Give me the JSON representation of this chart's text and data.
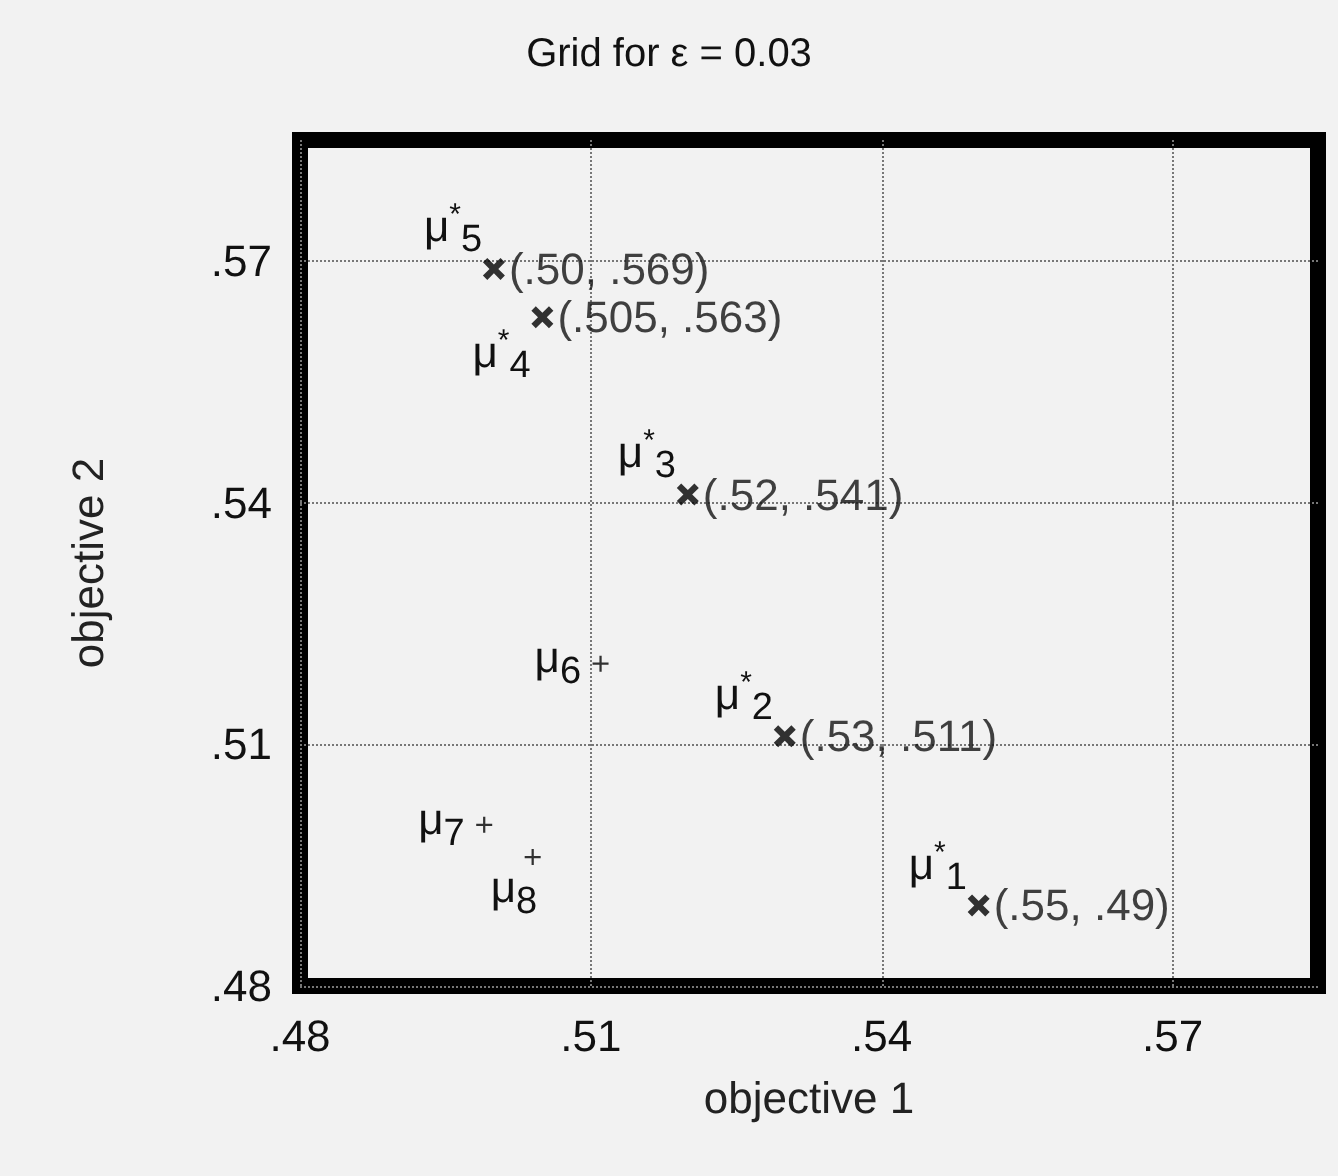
{
  "chart_data": {
    "type": "scatter",
    "title": "Grid for ε = 0.03",
    "xlabel": "objective 1",
    "ylabel": "objective 2",
    "series": [
      {
        "color": "#000000",
        "marker": "cross",
        "x": [
          0.55,
          0.53,
          0.52,
          0.505,
          0.5
        ],
        "values": [
          0.49,
          0.511,
          0.541,
          0.563,
          0.569
        ],
        "value_labels": [
          "(.55, .49)",
          "(.53, .511)",
          "(.52, .541)",
          "(.505, .563)",
          "(.50, .569)"
        ]
      },
      {
        "color": "#000000",
        "marker": "plus",
        "x": [
          0.511,
          0.499,
          0.504
        ],
        "values": [
          0.52,
          0.5,
          0.496
        ]
      }
    ],
    "annotations": [
      {
        "text": "μ$^{*}$$_{1}$",
        "x": 0.55,
        "y": 0.49
      },
      {
        "text": "μ$^{*}$$_{2}$",
        "x": 0.53,
        "y": 0.511
      },
      {
        "text": "μ$^{*}$$_{3}$",
        "x": 0.52,
        "y": 0.541
      },
      {
        "text": "μ$^{*}$$_{4}$",
        "x": 0.505,
        "y": 0.563
      },
      {
        "text": "μ$^{*}$$_{5}$",
        "x": 0.5,
        "y": 0.569
      },
      {
        "text": "μ$_{6}$",
        "x": 0.511,
        "y": 0.52
      },
      {
        "text": "μ$_{7}$",
        "x": 0.499,
        "y": 0.5
      },
      {
        "text": "μ$_{8}$",
        "x": 0.504,
        "y": 0.496
      }
    ],
    "xlim": [
      0.48,
      0.585
    ],
    "ylim": [
      0.48,
      0.585
    ],
    "xticks": [
      {
        "value": 0.48,
        "label": ".48"
      },
      {
        "value": 0.51,
        "label": ".51"
      },
      {
        "value": 0.54,
        "label": ".54"
      },
      {
        "value": 0.57,
        "label": ".57"
      }
    ],
    "yticks": [
      {
        "value": 0.48,
        "label": ".48"
      },
      {
        "value": 0.51,
        "label": ".51"
      },
      {
        "value": 0.54,
        "label": ".54"
      },
      {
        "value": 0.57,
        "label": ".57"
      }
    ],
    "grid": true
  }
}
